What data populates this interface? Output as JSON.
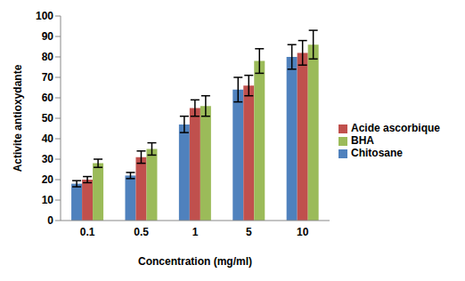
{
  "chart_data": {
    "type": "bar",
    "x_label": "Concentration (mg/ml)",
    "y_label": "Activite antioxydante",
    "categories": [
      "0.1",
      "0.5",
      "1",
      "5",
      "10"
    ],
    "series": [
      {
        "name": "Chitosane",
        "color": "#4F81BD",
        "values": [
          18,
          22,
          47,
          64,
          80
        ],
        "errors": [
          1.5,
          1.5,
          4,
          6,
          6
        ]
      },
      {
        "name": "Acide ascorbique",
        "color": "#C0504D",
        "values": [
          20,
          31,
          55,
          66,
          82
        ],
        "errors": [
          1.5,
          3,
          4,
          5,
          6
        ]
      },
      {
        "name": "BHA",
        "color": "#9BBB59",
        "values": [
          28,
          35,
          56,
          78,
          86
        ],
        "errors": [
          2,
          3,
          5,
          6,
          7
        ]
      }
    ],
    "ylim": [
      0,
      100
    ],
    "yticks": [
      0,
      10,
      20,
      30,
      40,
      50,
      60,
      70,
      80,
      90,
      100
    ],
    "grid": false,
    "legend": "right"
  }
}
